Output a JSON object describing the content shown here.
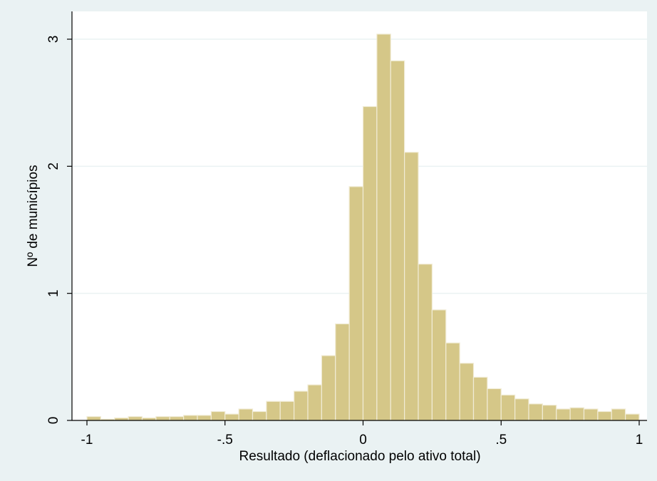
{
  "chart_data": {
    "type": "bar",
    "subtype": "histogram",
    "xlabel": "Resultado (deflacionado pelo ativo total)",
    "ylabel": "Nº de municípios",
    "xlim": [
      -1,
      1
    ],
    "ylim": [
      0,
      3.2
    ],
    "x_ticks": [
      {
        "value": -1,
        "label": "-1"
      },
      {
        "value": -0.5,
        "label": "-.5"
      },
      {
        "value": 0,
        "label": "0"
      },
      {
        "value": 0.5,
        "label": ".5"
      },
      {
        "value": 1,
        "label": "1"
      }
    ],
    "y_ticks": [
      {
        "value": 0,
        "label": "0"
      },
      {
        "value": 1,
        "label": "1"
      },
      {
        "value": 2,
        "label": "2"
      },
      {
        "value": 3,
        "label": "3"
      }
    ],
    "grid": true,
    "bin_width": 0.05,
    "bin_starts": [
      -1.0,
      -0.95,
      -0.9,
      -0.85,
      -0.8,
      -0.75,
      -0.7,
      -0.65,
      -0.6,
      -0.55,
      -0.5,
      -0.45,
      -0.4,
      -0.35,
      -0.3,
      -0.25,
      -0.2,
      -0.15,
      -0.1,
      -0.05,
      0.0,
      0.05,
      0.1,
      0.15,
      0.2,
      0.25,
      0.3,
      0.35,
      0.4,
      0.45,
      0.5,
      0.55,
      0.6,
      0.65,
      0.7,
      0.75,
      0.8,
      0.85,
      0.9,
      0.95
    ],
    "values": [
      0.03,
      0.01,
      0.02,
      0.03,
      0.02,
      0.03,
      0.03,
      0.04,
      0.04,
      0.07,
      0.05,
      0.09,
      0.07,
      0.15,
      0.15,
      0.23,
      0.28,
      0.51,
      0.76,
      1.84,
      2.47,
      3.04,
      2.83,
      2.11,
      1.23,
      0.87,
      0.61,
      0.45,
      0.34,
      0.25,
      0.2,
      0.17,
      0.13,
      0.12,
      0.09,
      0.1,
      0.09,
      0.07,
      0.09,
      0.05
    ],
    "colors": {
      "bar_fill": "#d5c788",
      "bar_stroke": "#f1ecd6",
      "plot_background": "#ffffff",
      "outer_background": "#eaf2f3",
      "grid": "#eaf2f3",
      "axis": "#000000"
    }
  }
}
